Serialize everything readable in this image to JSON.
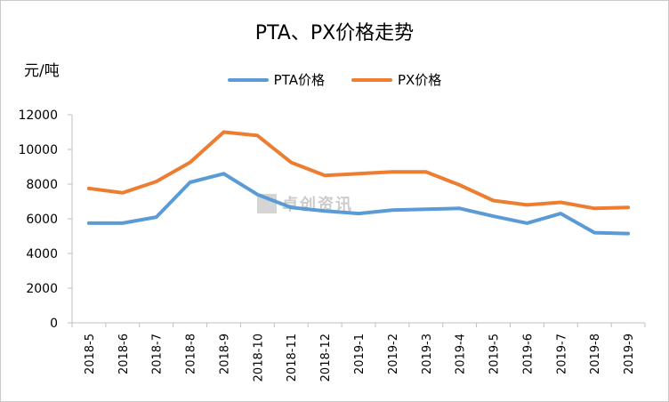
{
  "chart": {
    "title": "PTA、PX价格走势",
    "unit": "元/吨",
    "legend": [
      {
        "label": "PTA价格",
        "color": "#5b9bd5"
      },
      {
        "label": "PX价格",
        "color": "#ed7d31"
      }
    ]
  },
  "watermark": {
    "text": "卓创资讯"
  },
  "chart_data": {
    "type": "line",
    "title": "PTA、PX价格走势",
    "ylabel": "元/吨",
    "xlabel": "",
    "ylim": [
      0,
      12000
    ],
    "yticks": [
      0,
      2000,
      4000,
      6000,
      8000,
      10000,
      12000
    ],
    "grid": false,
    "legend_position": "top",
    "categories": [
      "2018-5",
      "2018-6",
      "2018-7",
      "2018-8",
      "2018-9",
      "2018-10",
      "2018-11",
      "2018-12",
      "2019-1",
      "2019-2",
      "2019-3",
      "2019-4",
      "2019-5",
      "2019-6",
      "2019-7",
      "2019-8",
      "2019-9"
    ],
    "series": [
      {
        "name": "PTA价格",
        "color": "#5b9bd5",
        "values": [
          5750,
          5750,
          6100,
          8100,
          8600,
          7400,
          6650,
          6450,
          6300,
          6500,
          6550,
          6600,
          6150,
          5750,
          6300,
          5200,
          5150
        ]
      },
      {
        "name": "PX价格",
        "color": "#ed7d31",
        "values": [
          7750,
          7500,
          8150,
          9250,
          11000,
          10800,
          9250,
          8500,
          8600,
          8700,
          8700,
          7950,
          7050,
          6800,
          6950,
          6600,
          6650
        ]
      }
    ]
  }
}
